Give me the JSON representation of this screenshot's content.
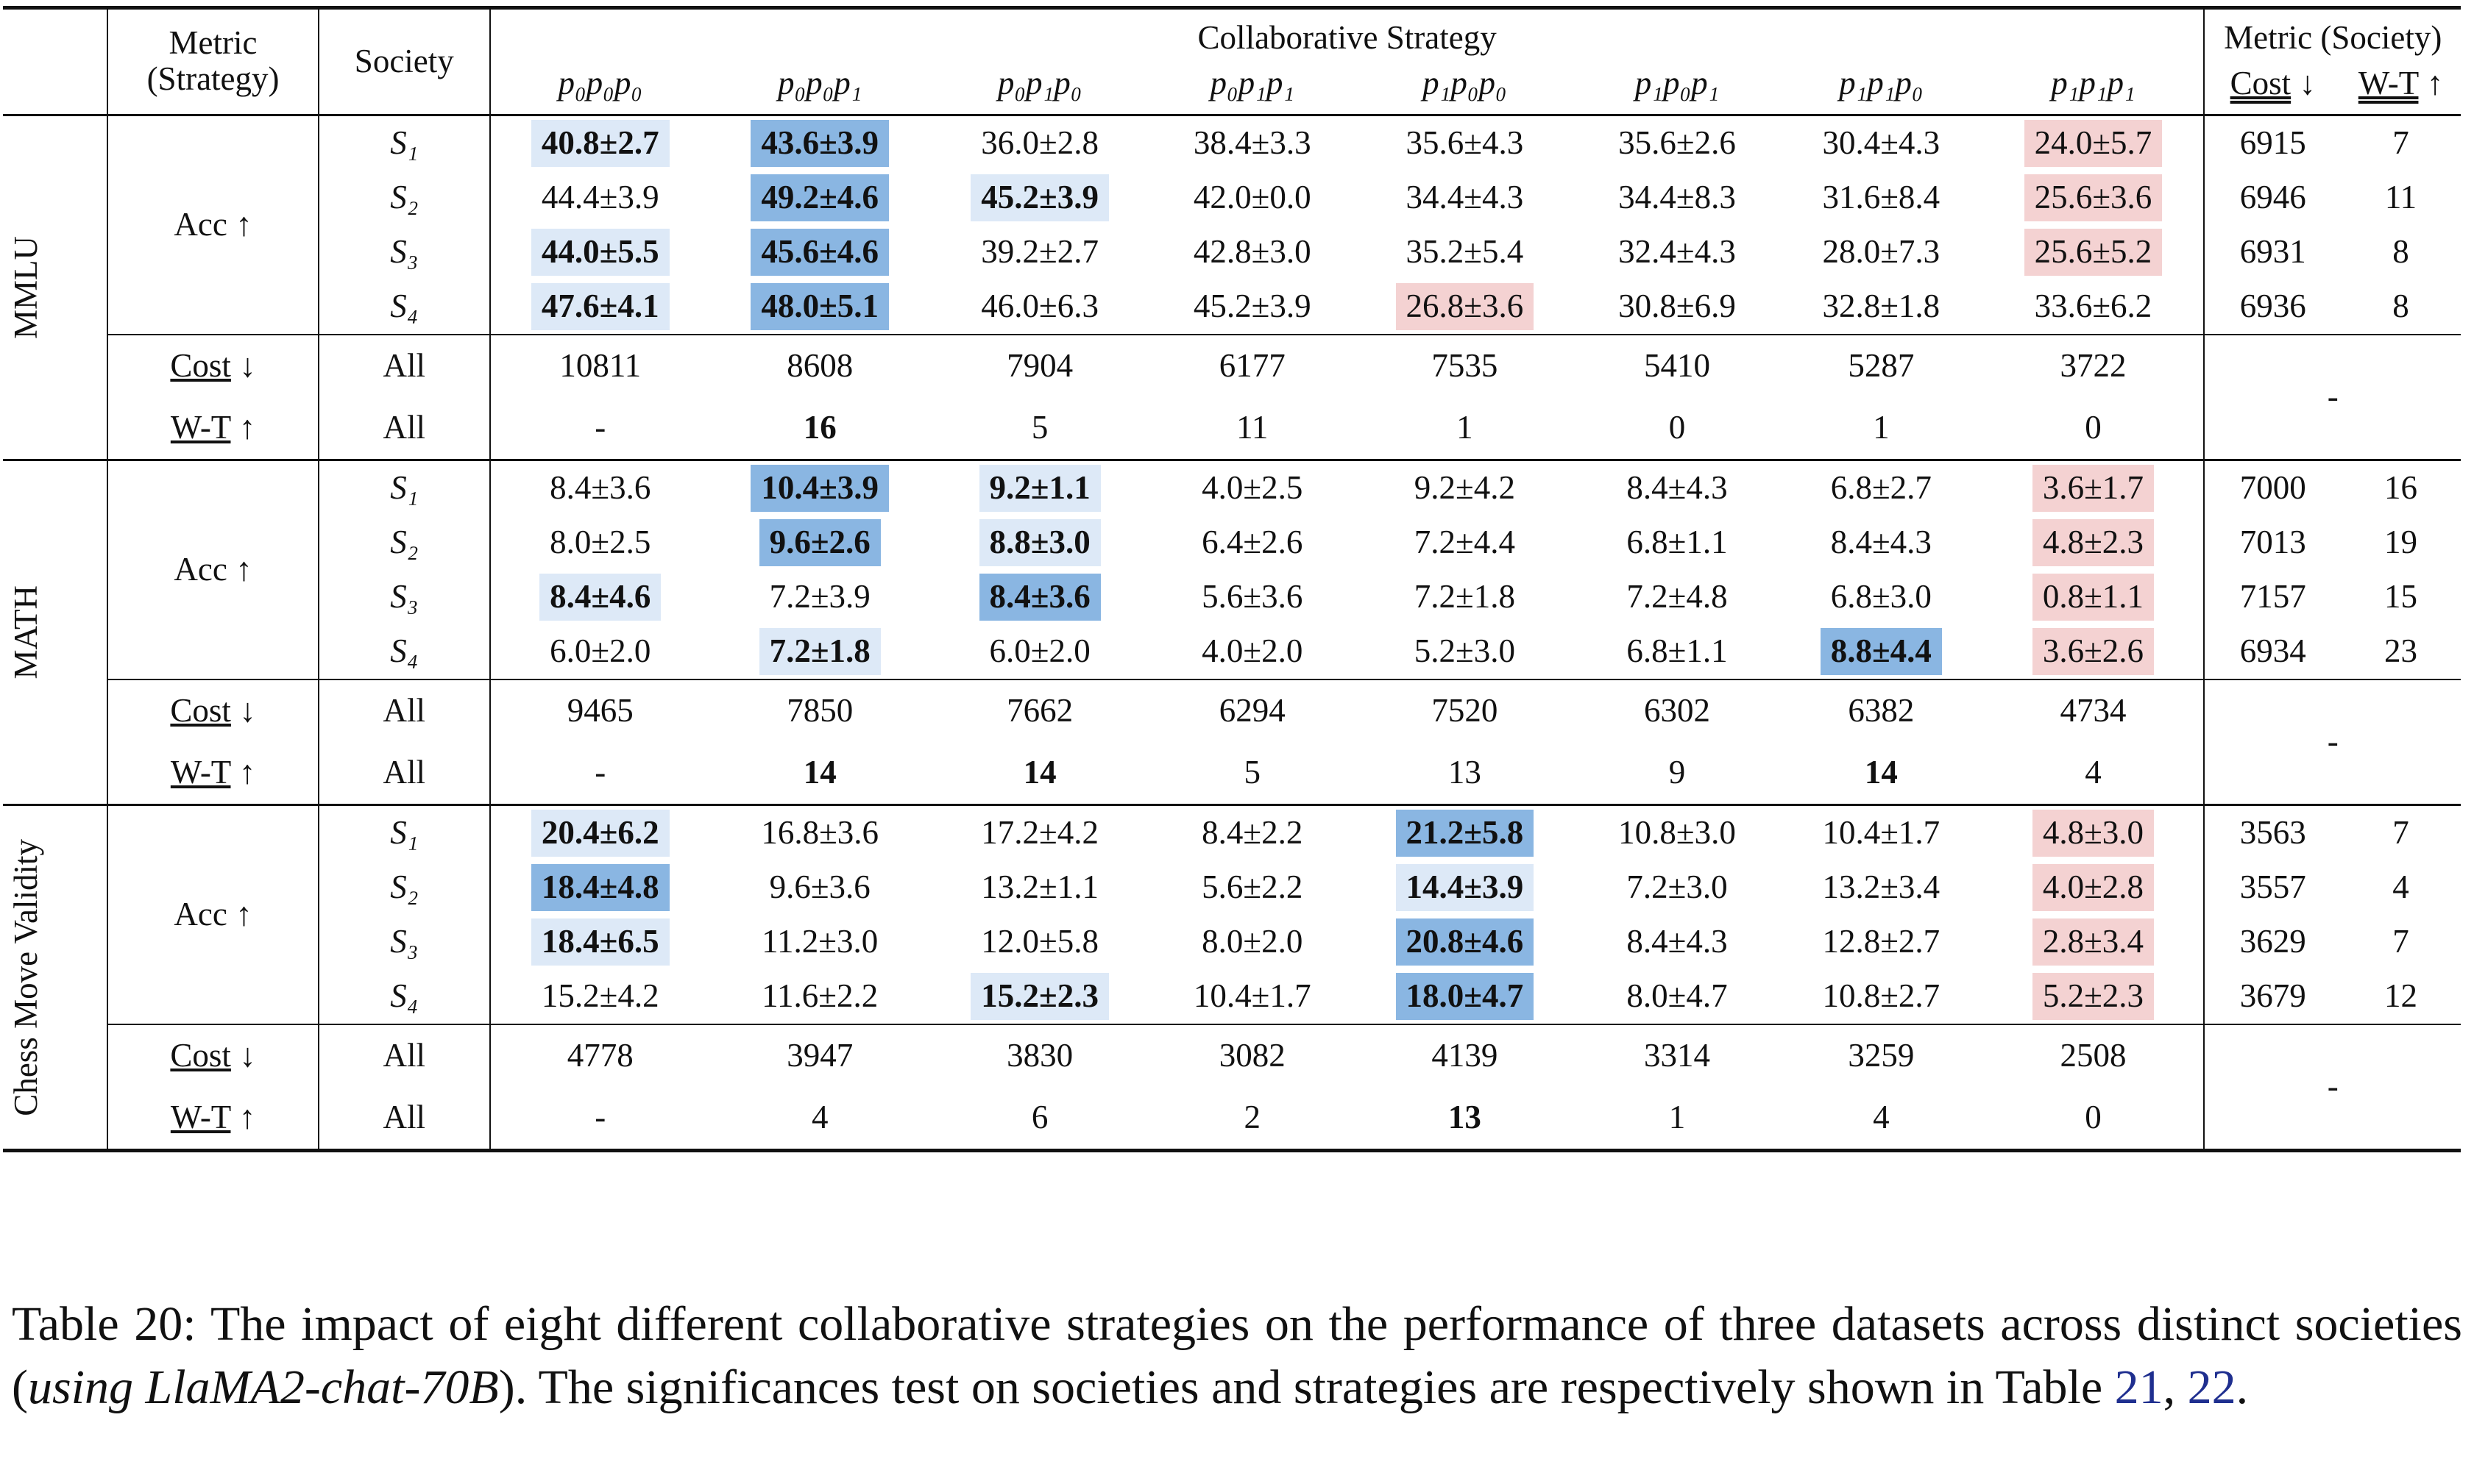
{
  "header": {
    "metric_strategy": "Metric (Strategy)",
    "society": "Society",
    "collab": "Collaborative Strategy",
    "metric_society": "Metric (Society)",
    "cost": "Cost",
    "wt": "W-T",
    "down": "↓",
    "up": "↑"
  },
  "strategies": [
    "p₀p₀p₀",
    "p₀p₀p₁",
    "p₀p₁p₀",
    "p₀p₁p₁",
    "p₁p₀p₀",
    "p₁p₀p₁",
    "p₁p₁p₀",
    "p₁p₁p₁"
  ],
  "labels": {
    "acc": "Acc ↑",
    "cost": "Cost",
    "wt": "W-T",
    "all": "All",
    "dash": "-"
  },
  "datasets": [
    {
      "name": "MMLU",
      "rows": [
        {
          "society": "S₁",
          "cells": [
            {
              "v": "40.8±2.7",
              "b": true,
              "c": "blue1"
            },
            {
              "v": "43.6±3.9",
              "b": true,
              "c": "blue3"
            },
            {
              "v": "36.0±2.8"
            },
            {
              "v": "38.4±3.3"
            },
            {
              "v": "35.6±4.3"
            },
            {
              "v": "35.6±2.6"
            },
            {
              "v": "30.4±4.3"
            },
            {
              "v": "24.0±5.7",
              "c": "red"
            }
          ],
          "cost": "6915",
          "wt": "7"
        },
        {
          "society": "S₂",
          "cells": [
            {
              "v": "44.4±3.9"
            },
            {
              "v": "49.2±4.6",
              "b": true,
              "c": "blue3"
            },
            {
              "v": "45.2±3.9",
              "b": true,
              "c": "blue1"
            },
            {
              "v": "42.0±0.0"
            },
            {
              "v": "34.4±4.3"
            },
            {
              "v": "34.4±8.3"
            },
            {
              "v": "31.6±8.4"
            },
            {
              "v": "25.6±3.6",
              "c": "red"
            }
          ],
          "cost": "6946",
          "wt": "11"
        },
        {
          "society": "S₃",
          "cells": [
            {
              "v": "44.0±5.5",
              "b": true,
              "c": "blue1"
            },
            {
              "v": "45.6±4.6",
              "b": true,
              "c": "blue3"
            },
            {
              "v": "39.2±2.7"
            },
            {
              "v": "42.8±3.0"
            },
            {
              "v": "35.2±5.4"
            },
            {
              "v": "32.4±4.3"
            },
            {
              "v": "28.0±7.3"
            },
            {
              "v": "25.6±5.2",
              "c": "red"
            }
          ],
          "cost": "6931",
          "wt": "8"
        },
        {
          "society": "S₄",
          "cells": [
            {
              "v": "47.6±4.1",
              "b": true,
              "c": "blue1"
            },
            {
              "v": "48.0±5.1",
              "b": true,
              "c": "blue3"
            },
            {
              "v": "46.0±6.3"
            },
            {
              "v": "45.2±3.9"
            },
            {
              "v": "26.8±3.6",
              "c": "red"
            },
            {
              "v": "30.8±6.9"
            },
            {
              "v": "32.8±1.8"
            },
            {
              "v": "33.6±6.2"
            }
          ],
          "cost": "6936",
          "wt": "8"
        }
      ],
      "cost_all": [
        {
          "v": "10811"
        },
        {
          "v": "8608"
        },
        {
          "v": "7904"
        },
        {
          "v": "6177"
        },
        {
          "v": "7535"
        },
        {
          "v": "5410"
        },
        {
          "v": "5287"
        },
        {
          "v": "3722"
        }
      ],
      "wt_all": [
        {
          "v": "-"
        },
        {
          "v": "16",
          "b": true
        },
        {
          "v": "5"
        },
        {
          "v": "11"
        },
        {
          "v": "1"
        },
        {
          "v": "0"
        },
        {
          "v": "1"
        },
        {
          "v": "0"
        }
      ]
    },
    {
      "name": "MATH",
      "rows": [
        {
          "society": "S₁",
          "cells": [
            {
              "v": "8.4±3.6"
            },
            {
              "v": "10.4±3.9",
              "b": true,
              "c": "blue3"
            },
            {
              "v": "9.2±1.1",
              "b": true,
              "c": "blue1"
            },
            {
              "v": "4.0±2.5"
            },
            {
              "v": "9.2±4.2"
            },
            {
              "v": "8.4±4.3"
            },
            {
              "v": "6.8±2.7"
            },
            {
              "v": "3.6±1.7",
              "c": "red"
            }
          ],
          "cost": "7000",
          "wt": "16"
        },
        {
          "society": "S₂",
          "cells": [
            {
              "v": "8.0±2.5"
            },
            {
              "v": "9.6±2.6",
              "b": true,
              "c": "blue3"
            },
            {
              "v": "8.8±3.0",
              "b": true,
              "c": "blue1"
            },
            {
              "v": "6.4±2.6"
            },
            {
              "v": "7.2±4.4"
            },
            {
              "v": "6.8±1.1"
            },
            {
              "v": "8.4±4.3"
            },
            {
              "v": "4.8±2.3",
              "c": "red"
            }
          ],
          "cost": "7013",
          "wt": "19"
        },
        {
          "society": "S₃",
          "cells": [
            {
              "v": "8.4±4.6",
              "b": true,
              "c": "blue1"
            },
            {
              "v": "7.2±3.9"
            },
            {
              "v": "8.4±3.6",
              "b": true,
              "c": "blue3"
            },
            {
              "v": "5.6±3.6"
            },
            {
              "v": "7.2±1.8"
            },
            {
              "v": "7.2±4.8"
            },
            {
              "v": "6.8±3.0"
            },
            {
              "v": "0.8±1.1",
              "c": "red"
            }
          ],
          "cost": "7157",
          "wt": "15"
        },
        {
          "society": "S₄",
          "cells": [
            {
              "v": "6.0±2.0"
            },
            {
              "v": "7.2±1.8",
              "b": true,
              "c": "blue1"
            },
            {
              "v": "6.0±2.0"
            },
            {
              "v": "4.0±2.0"
            },
            {
              "v": "5.2±3.0"
            },
            {
              "v": "6.8±1.1"
            },
            {
              "v": "8.8±4.4",
              "b": true,
              "c": "blue3"
            },
            {
              "v": "3.6±2.6",
              "c": "red"
            }
          ],
          "cost": "6934",
          "wt": "23"
        }
      ],
      "cost_all": [
        {
          "v": "9465"
        },
        {
          "v": "7850"
        },
        {
          "v": "7662"
        },
        {
          "v": "6294"
        },
        {
          "v": "7520"
        },
        {
          "v": "6302"
        },
        {
          "v": "6382"
        },
        {
          "v": "4734"
        }
      ],
      "wt_all": [
        {
          "v": "-"
        },
        {
          "v": "14",
          "b": true
        },
        {
          "v": "14",
          "b": true
        },
        {
          "v": "5"
        },
        {
          "v": "13"
        },
        {
          "v": "9"
        },
        {
          "v": "14",
          "b": true
        },
        {
          "v": "4"
        }
      ]
    },
    {
      "name": "Chess Move Validity",
      "rows": [
        {
          "society": "S₁",
          "cells": [
            {
              "v": "20.4±6.2",
              "b": true,
              "c": "blue1"
            },
            {
              "v": "16.8±3.6"
            },
            {
              "v": "17.2±4.2"
            },
            {
              "v": "8.4±2.2"
            },
            {
              "v": "21.2±5.8",
              "b": true,
              "c": "blue3"
            },
            {
              "v": "10.8±3.0"
            },
            {
              "v": "10.4±1.7"
            },
            {
              "v": "4.8±3.0",
              "c": "red"
            }
          ],
          "cost": "3563",
          "wt": "7"
        },
        {
          "society": "S₂",
          "cells": [
            {
              "v": "18.4±4.8",
              "b": true,
              "c": "blue3"
            },
            {
              "v": "9.6±3.6"
            },
            {
              "v": "13.2±1.1"
            },
            {
              "v": "5.6±2.2"
            },
            {
              "v": "14.4±3.9",
              "b": true,
              "c": "blue1"
            },
            {
              "v": "7.2±3.0"
            },
            {
              "v": "13.2±3.4"
            },
            {
              "v": "4.0±2.8",
              "c": "red"
            }
          ],
          "cost": "3557",
          "wt": "4"
        },
        {
          "society": "S₃",
          "cells": [
            {
              "v": "18.4±6.5",
              "b": true,
              "c": "blue1"
            },
            {
              "v": "11.2±3.0"
            },
            {
              "v": "12.0±5.8"
            },
            {
              "v": "8.0±2.0"
            },
            {
              "v": "20.8±4.6",
              "b": true,
              "c": "blue3"
            },
            {
              "v": "8.4±4.3"
            },
            {
              "v": "12.8±2.7"
            },
            {
              "v": "2.8±3.4",
              "c": "red"
            }
          ],
          "cost": "3629",
          "wt": "7"
        },
        {
          "society": "S₄",
          "cells": [
            {
              "v": "15.2±4.2"
            },
            {
              "v": "11.6±2.2"
            },
            {
              "v": "15.2±2.3",
              "b": true,
              "c": "blue1"
            },
            {
              "v": "10.4±1.7"
            },
            {
              "v": "18.0±4.7",
              "b": true,
              "c": "blue3"
            },
            {
              "v": "8.0±4.7"
            },
            {
              "v": "10.8±2.7"
            },
            {
              "v": "5.2±2.3",
              "c": "red"
            }
          ],
          "cost": "3679",
          "wt": "12"
        }
      ],
      "cost_all": [
        {
          "v": "4778"
        },
        {
          "v": "3947"
        },
        {
          "v": "3830"
        },
        {
          "v": "3082"
        },
        {
          "v": "4139"
        },
        {
          "v": "3314"
        },
        {
          "v": "3259"
        },
        {
          "v": "2508"
        }
      ],
      "wt_all": [
        {
          "v": "-"
        },
        {
          "v": "4"
        },
        {
          "v": "6"
        },
        {
          "v": "2"
        },
        {
          "v": "13",
          "b": true
        },
        {
          "v": "1"
        },
        {
          "v": "4"
        },
        {
          "v": "0"
        }
      ]
    }
  ],
  "caption": {
    "prefix": "Table 20: The impact of eight different collaborative strategies on the performance of three datasets across distinct societies (",
    "model": "using LlaMA2-chat-70B",
    "middle": "). The significances test on societies and strategies are respectively shown in Table ",
    "ref1": "21",
    "sep": ", ",
    "ref2": "22",
    "end": "."
  }
}
